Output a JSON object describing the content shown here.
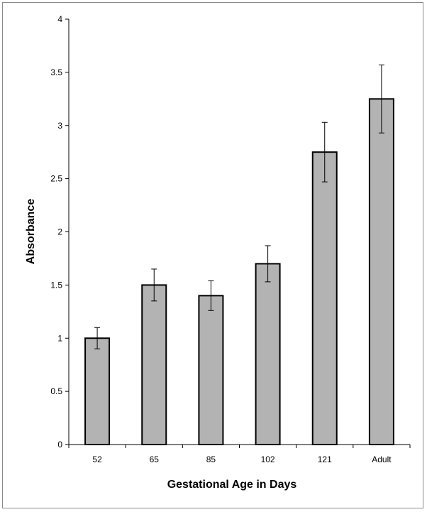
{
  "chart_data": {
    "type": "bar",
    "title": "",
    "xlabel": "Gestational Age in Days",
    "ylabel": "Absorbance",
    "categories": [
      "52",
      "65",
      "85",
      "102",
      "121",
      "Adult"
    ],
    "values": [
      1.0,
      1.5,
      1.4,
      1.7,
      2.75,
      3.25
    ],
    "error": [
      0.1,
      0.15,
      0.14,
      0.17,
      0.28,
      0.32
    ],
    "ylim": [
      0,
      4
    ],
    "yticks": [
      "0",
      "0.5",
      "1",
      "1.5",
      "2",
      "2.5",
      "3",
      "3.5",
      "4"
    ],
    "grid": false,
    "legend": "none",
    "colors": {
      "bar_fill": "#b3b3b3",
      "bar_stroke": "#000000",
      "axis": "#000000"
    }
  }
}
